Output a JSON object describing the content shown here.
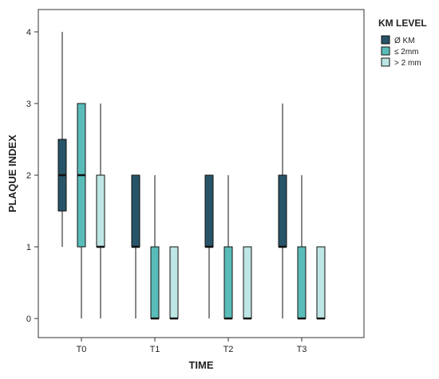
{
  "chart_data": {
    "type": "boxplot",
    "xlabel": "TIME",
    "ylabel": "PLAQUE INDEX",
    "ylim": [
      0,
      4
    ],
    "yticks": [
      0,
      1,
      2,
      3,
      4
    ],
    "categories": [
      "T0",
      "T1",
      "T2",
      "T3"
    ],
    "legend": {
      "title": "KM LEVEL",
      "placement": "top-right"
    },
    "grid": false,
    "series": [
      {
        "name": "Ø KM",
        "color": "#275468",
        "boxes": [
          {
            "min": 1,
            "q1": 1.5,
            "median": 2,
            "q3": 2.5,
            "max": 4
          },
          {
            "min": 0,
            "q1": 1,
            "median": 1,
            "q3": 2,
            "max": 2
          },
          {
            "min": 0,
            "q1": 1,
            "median": 1,
            "q3": 2,
            "max": 2
          },
          {
            "min": 0,
            "q1": 1,
            "median": 1,
            "q3": 2,
            "max": 3
          }
        ]
      },
      {
        "name": "≤ 2mm",
        "color": "#5abcb9",
        "boxes": [
          {
            "min": 0,
            "q1": 1,
            "median": 2,
            "q3": 3,
            "max": 3
          },
          {
            "min": 0,
            "q1": 0,
            "median": 0,
            "q3": 1,
            "max": 2
          },
          {
            "min": 0,
            "q1": 0,
            "median": 0,
            "q3": 1,
            "max": 2
          },
          {
            "min": 0,
            "q1": 0,
            "median": 0,
            "q3": 1,
            "max": 2
          }
        ]
      },
      {
        "name": "> 2 mm",
        "color": "#bde6e5",
        "boxes": [
          {
            "min": 0,
            "q1": 1,
            "median": 1,
            "q3": 2,
            "max": 3
          },
          {
            "min": 0,
            "q1": 0,
            "median": 0,
            "q3": 1,
            "max": 1
          },
          {
            "min": 0,
            "q1": 0,
            "median": 0,
            "q3": 1,
            "max": 1
          },
          {
            "min": 0,
            "q1": 0,
            "median": 0,
            "q3": 1,
            "max": 1
          }
        ]
      }
    ]
  }
}
